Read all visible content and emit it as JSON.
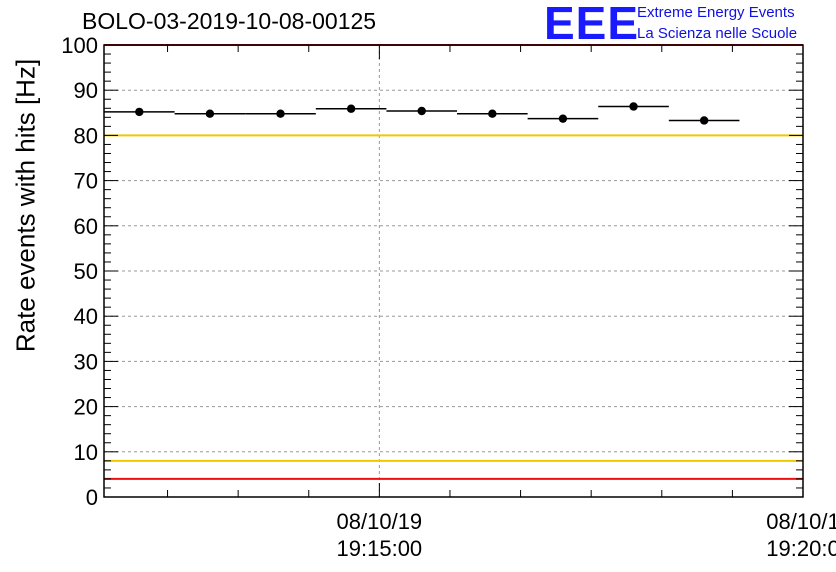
{
  "chart_data": {
    "type": "scatter",
    "title": "BOLO-03-2019-10-08-00125",
    "ylabel": "Rate events with hits [Hz]",
    "xlabel": "",
    "ylim": [
      0,
      100
    ],
    "y_ticks": [
      0,
      10,
      20,
      30,
      40,
      50,
      60,
      70,
      80,
      90,
      100
    ],
    "x_ticks": [
      {
        "date": "08/10/19",
        "time": "19:15:00",
        "t_seconds": 0
      },
      {
        "date": "08/10/1",
        "time": "19:20:0",
        "t_seconds": 300
      }
    ],
    "xlim_seconds": [
      -195,
      300
    ],
    "grid": true,
    "series": [
      {
        "points": [
          {
            "x_start": -195,
            "x_end": -145,
            "y": 85.2,
            "err": 0.6
          },
          {
            "x_start": -145,
            "x_end": -95,
            "y": 84.8,
            "err": 0.6
          },
          {
            "x_start": -95,
            "x_end": -45,
            "y": 84.8,
            "err": 0.6
          },
          {
            "x_start": -45,
            "x_end": 5,
            "y": 85.9,
            "err": 0.6
          },
          {
            "x_start": 5,
            "x_end": 55,
            "y": 85.4,
            "err": 0.6
          },
          {
            "x_start": 55,
            "x_end": 105,
            "y": 84.8,
            "err": 0.6
          },
          {
            "x_start": 105,
            "x_end": 155,
            "y": 83.7,
            "err": 0.6
          },
          {
            "x_start": 155,
            "x_end": 205,
            "y": 86.4,
            "err": 0.6
          },
          {
            "x_start": 205,
            "x_end": 255,
            "y": 83.3,
            "err": 0.6
          }
        ]
      }
    ],
    "reference_lines": [
      {
        "y": 100,
        "color": "#ee1111"
      },
      {
        "y": 80,
        "color": "#f0c800"
      },
      {
        "y": 8,
        "color": "#f0c800"
      },
      {
        "y": 4,
        "color": "#ee1111"
      }
    ]
  },
  "logo": {
    "mark": "EEE",
    "line1": "Extreme Energy Events",
    "line2": "La Scienza nelle Scuole"
  }
}
